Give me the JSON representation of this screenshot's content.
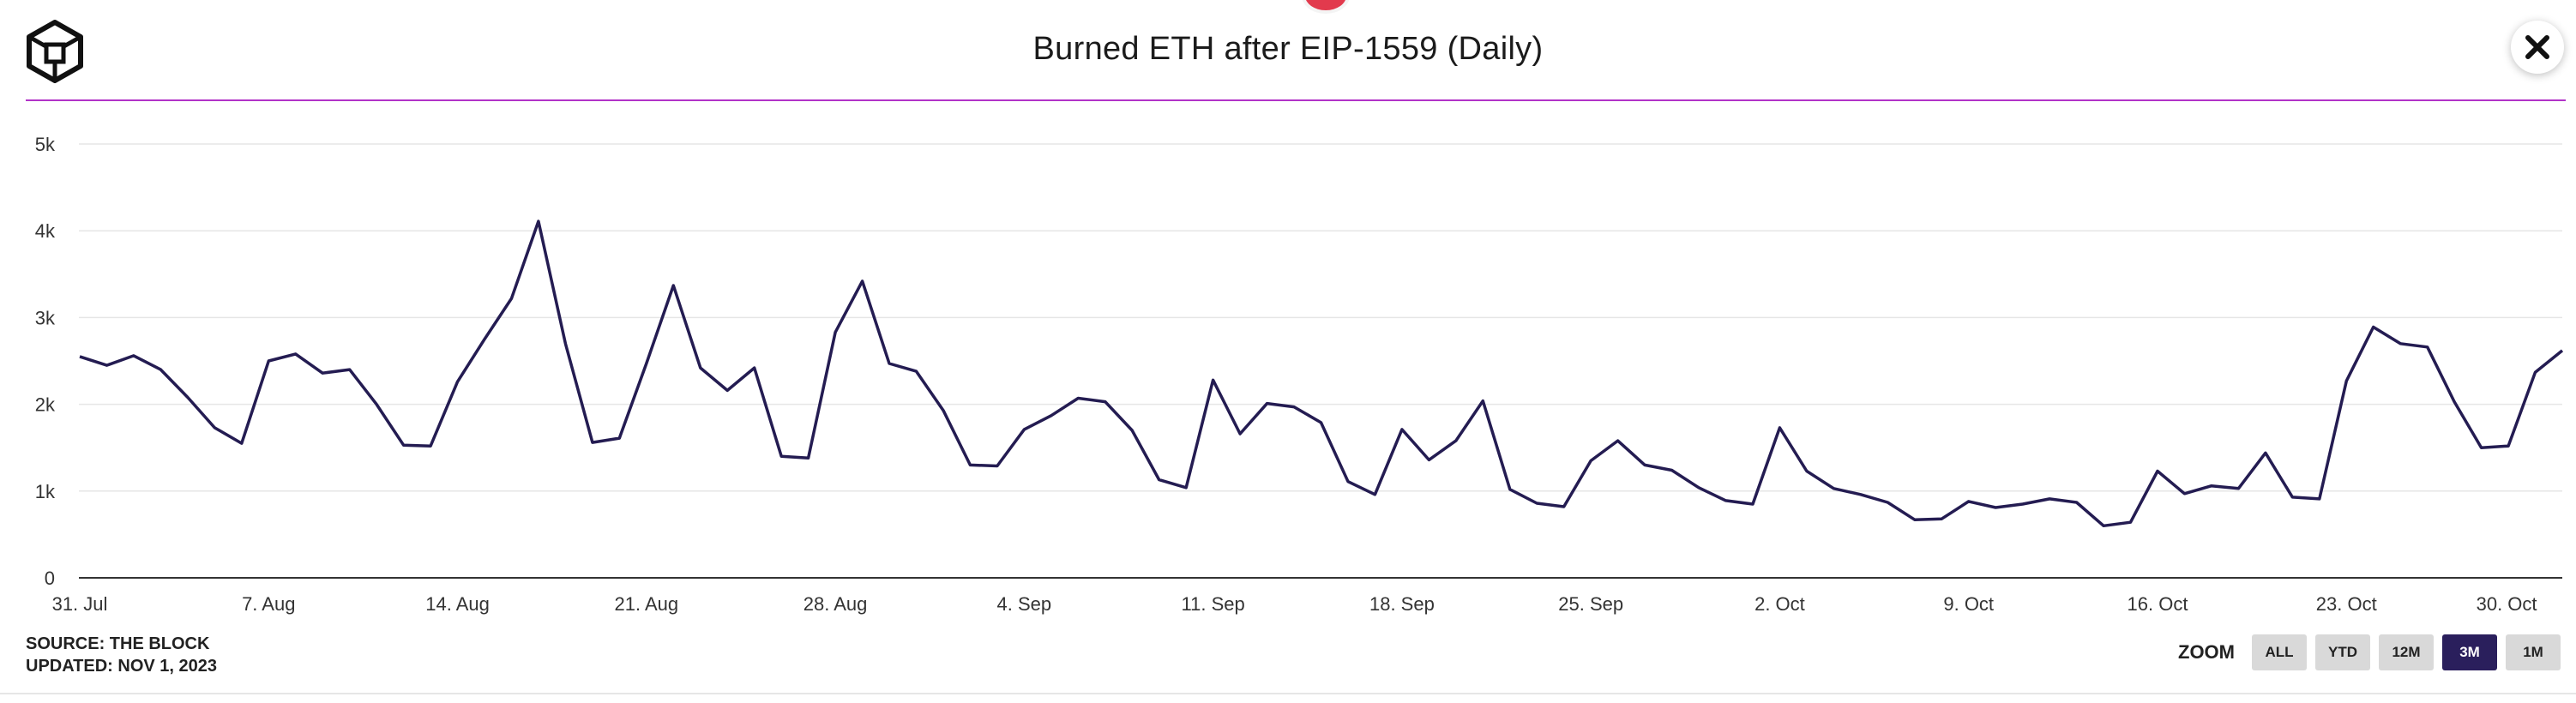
{
  "header": {
    "title": "Burned ETH after EIP-1559 (Daily)",
    "logo_icon": "cube-logo-icon",
    "close_icon": "close-icon",
    "accent": "#b233c8"
  },
  "chart_data": {
    "type": "line",
    "title": "Burned ETH after EIP-1559 (Daily)",
    "xlabel": "",
    "ylabel": "",
    "ylim": [
      0,
      5000
    ],
    "grid": true,
    "line_color": "#241c52",
    "y_ticks": [
      {
        "label": "0",
        "value": 0
      },
      {
        "label": "1k",
        "value": 1000
      },
      {
        "label": "2k",
        "value": 2000
      },
      {
        "label": "3k",
        "value": 3000
      },
      {
        "label": "4k",
        "value": 4000
      },
      {
        "label": "5k",
        "value": 5000
      }
    ],
    "x_ticks": [
      {
        "label": "31. Jul",
        "day": 0
      },
      {
        "label": "7. Aug",
        "day": 7
      },
      {
        "label": "14. Aug",
        "day": 14
      },
      {
        "label": "21. Aug",
        "day": 21
      },
      {
        "label": "28. Aug",
        "day": 28
      },
      {
        "label": "4. Sep",
        "day": 35
      },
      {
        "label": "11. Sep",
        "day": 42
      },
      {
        "label": "18. Sep",
        "day": 49
      },
      {
        "label": "25. Sep",
        "day": 56
      },
      {
        "label": "2. Oct",
        "day": 63
      },
      {
        "label": "9. Oct",
        "day": 70
      },
      {
        "label": "16. Oct",
        "day": 77
      },
      {
        "label": "23. Oct",
        "day": 84
      },
      {
        "label": "30. Oct",
        "day": 91
      }
    ],
    "series": [
      {
        "name": "Burned ETH",
        "start": "31. Jul",
        "values": [
          2550,
          2450,
          2560,
          2400,
          2080,
          1730,
          1550,
          2500,
          2580,
          2360,
          2400,
          2000,
          1530,
          1520,
          2260,
          2750,
          3220,
          4110,
          2700,
          1560,
          1610,
          2470,
          3370,
          2420,
          2160,
          2420,
          1400,
          1380,
          2830,
          3420,
          2470,
          2380,
          1930,
          1300,
          1290,
          1710,
          1870,
          2070,
          2030,
          1700,
          1130,
          1040,
          2280,
          1660,
          2010,
          1970,
          1790,
          1110,
          960,
          1710,
          1360,
          1580,
          2040,
          1020,
          860,
          820,
          1350,
          1580,
          1300,
          1240,
          1040,
          890,
          850,
          1730,
          1230,
          1030,
          960,
          870,
          670,
          680,
          880,
          810,
          850,
          910,
          870,
          600,
          640,
          1230,
          970,
          1060,
          1030,
          1440,
          930,
          910,
          2270,
          2890,
          2700,
          2660,
          2030,
          1500,
          1520,
          2370,
          2620
        ]
      }
    ]
  },
  "footer": {
    "source": "SOURCE: THE BLOCK",
    "updated": "UPDATED: NOV 1, 2023",
    "zoom_label": "ZOOM",
    "zoom_options": [
      "ALL",
      "YTD",
      "12M",
      "3M",
      "1M"
    ],
    "zoom_selected": "3M"
  }
}
